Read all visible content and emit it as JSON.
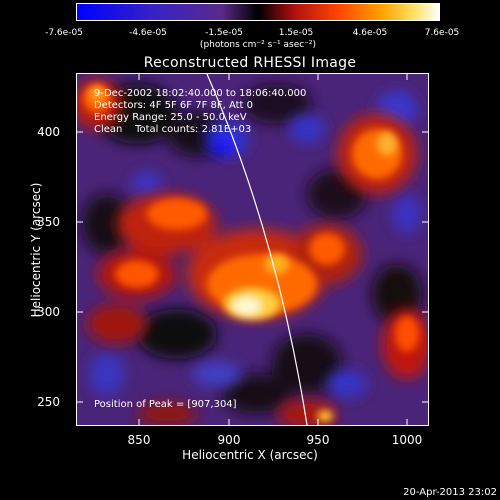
{
  "colorbar": {
    "ticks": [
      "-7.6e-05",
      "-4.6e-05",
      "-1.5e-05",
      "1.5e-05",
      "4.6e-05",
      "7.6e-05"
    ],
    "unit": "(photons cm⁻² s⁻¹ asec⁻²)"
  },
  "title": "Reconstructed RHESSI Image",
  "info_lines": [
    "9-Dec-2002 18:02:40.000 to 18:06:40.000",
    "Detectors: 4F 5F 6F 7F 8F, Att 0",
    "Energy Range: 25.0 - 50.0 keV",
    "Clean    Total counts: 2.81E+03"
  ],
  "peak_text": "Position of Peak = [907,304]",
  "axes": {
    "xlabel": "Heliocentric X (arcsec)",
    "ylabel": "Heliocentric Y (arcsec)",
    "xticks": [
      "850",
      "900",
      "950",
      "1000"
    ],
    "yticks": [
      "250",
      "300",
      "350",
      "400"
    ]
  },
  "timestamp": "20-Apr-2013 23:02",
  "colors": {
    "background": "#000000",
    "frame": "#ffffff",
    "limb": "#ffffff"
  }
}
